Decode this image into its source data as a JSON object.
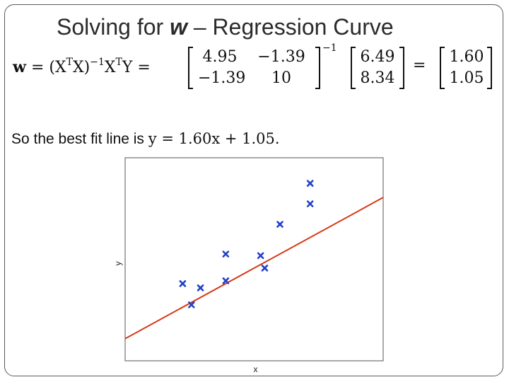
{
  "slide": {
    "title_prefix": "Solving for ",
    "title_var": "w",
    "title_suffix": " – Regression Curve",
    "equation": {
      "lhs": "w",
      "lhs_rest": " = (X",
      "sup_T1": "T",
      "mid1": "X)",
      "sup_inv1": "−1",
      "mid2": "X",
      "sup_T2": "T",
      "mid3": "Y =",
      "matrix_a": [
        [
          "4.95",
          "−1.39"
        ],
        [
          "−1.39",
          "10"
        ]
      ],
      "matrix_a_sup": "−1",
      "vector_b": [
        "6.49",
        "8.34"
      ],
      "equals": "=",
      "vector_w": [
        "1.60",
        "1.05"
      ]
    },
    "best_fit_text": "So the best fit line is ",
    "best_fit_formula": "y = 1.60x + 1.05."
  },
  "chart_data": {
    "type": "scatter",
    "xlabel": "x",
    "ylabel": "y",
    "xlim": [
      0,
      1
    ],
    "ylim": [
      0.8,
      3.1
    ],
    "grid": false,
    "colors": {
      "points": "#2240c8",
      "line": "#d23a1a",
      "axes": "#555555"
    },
    "points": [
      {
        "x": 0.223,
        "y": 1.674
      },
      {
        "x": 0.257,
        "y": 1.434
      },
      {
        "x": 0.292,
        "y": 1.626
      },
      {
        "x": 0.39,
        "y": 2.009
      },
      {
        "x": 0.39,
        "y": 1.706
      },
      {
        "x": 0.525,
        "y": 1.991
      },
      {
        "x": 0.541,
        "y": 1.85
      },
      {
        "x": 0.6,
        "y": 2.346
      },
      {
        "x": 0.717,
        "y": 2.578
      },
      {
        "x": 0.717,
        "y": 2.81
      }
    ],
    "line": {
      "slope": 1.6,
      "intercept": 1.05
    }
  }
}
